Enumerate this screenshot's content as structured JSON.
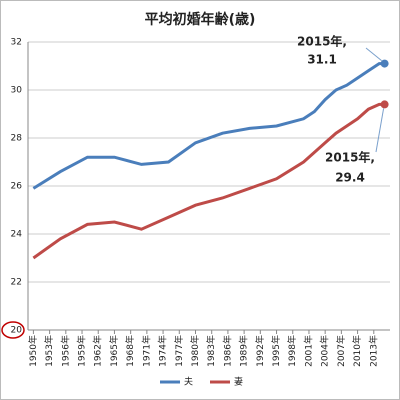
{
  "chart_data": {
    "type": "line",
    "title": "平均初婚年齢(歳)",
    "x": [
      1950,
      1955,
      1960,
      1965,
      1970,
      1975,
      1980,
      1985,
      1990,
      1995,
      2000,
      2002,
      2004,
      2006,
      2008,
      2010,
      2012,
      2014,
      2015
    ],
    "series": [
      {
        "name": "夫",
        "color": "#4a7ebb",
        "values": [
          25.9,
          26.6,
          27.2,
          27.2,
          26.9,
          27.0,
          27.8,
          28.2,
          28.4,
          28.5,
          28.8,
          29.1,
          29.6,
          30.0,
          30.2,
          30.5,
          30.8,
          31.1,
          31.1
        ]
      },
      {
        "name": "妻",
        "color": "#be4b48",
        "values": [
          23.0,
          23.8,
          24.4,
          24.5,
          24.2,
          24.7,
          25.2,
          25.5,
          25.9,
          26.3,
          27.0,
          27.4,
          27.8,
          28.2,
          28.5,
          28.8,
          29.2,
          29.4,
          29.4
        ]
      }
    ],
    "annotations": [
      {
        "year_label": "2015年,",
        "value_label": "31.1"
      },
      {
        "year_label": "2015年,",
        "value_label": "29.4"
      }
    ],
    "xlim": [
      1949,
      2016
    ],
    "xticks": [
      {
        "value": 1950,
        "label": "1950年"
      },
      {
        "value": 1953,
        "label": "1953年"
      },
      {
        "value": 1956,
        "label": "1956年"
      },
      {
        "value": 1959,
        "label": "1959年"
      },
      {
        "value": 1962,
        "label": "1962年"
      },
      {
        "value": 1965,
        "label": "1965年"
      },
      {
        "value": 1968,
        "label": "1968年"
      },
      {
        "value": 1971,
        "label": "1971年"
      },
      {
        "value": 1974,
        "label": "1974年"
      },
      {
        "value": 1977,
        "label": "1977年"
      },
      {
        "value": 1980,
        "label": "1980年"
      },
      {
        "value": 1983,
        "label": "1983年"
      },
      {
        "value": 1986,
        "label": "1986年"
      },
      {
        "value": 1989,
        "label": "1989年"
      },
      {
        "value": 1992,
        "label": "1992年"
      },
      {
        "value": 1995,
        "label": "1995年"
      },
      {
        "value": 1998,
        "label": "1998年"
      },
      {
        "value": 2001,
        "label": "2001年"
      },
      {
        "value": 2004,
        "label": "2004年"
      },
      {
        "value": 2007,
        "label": "2007年"
      },
      {
        "value": 2010,
        "label": "2010年"
      },
      {
        "value": 2013,
        "label": "2013年"
      }
    ],
    "ylim": [
      20,
      32
    ],
    "yticks": [
      20,
      22,
      24,
      26,
      28,
      30,
      32
    ],
    "grid": true,
    "legend": "bottom"
  }
}
